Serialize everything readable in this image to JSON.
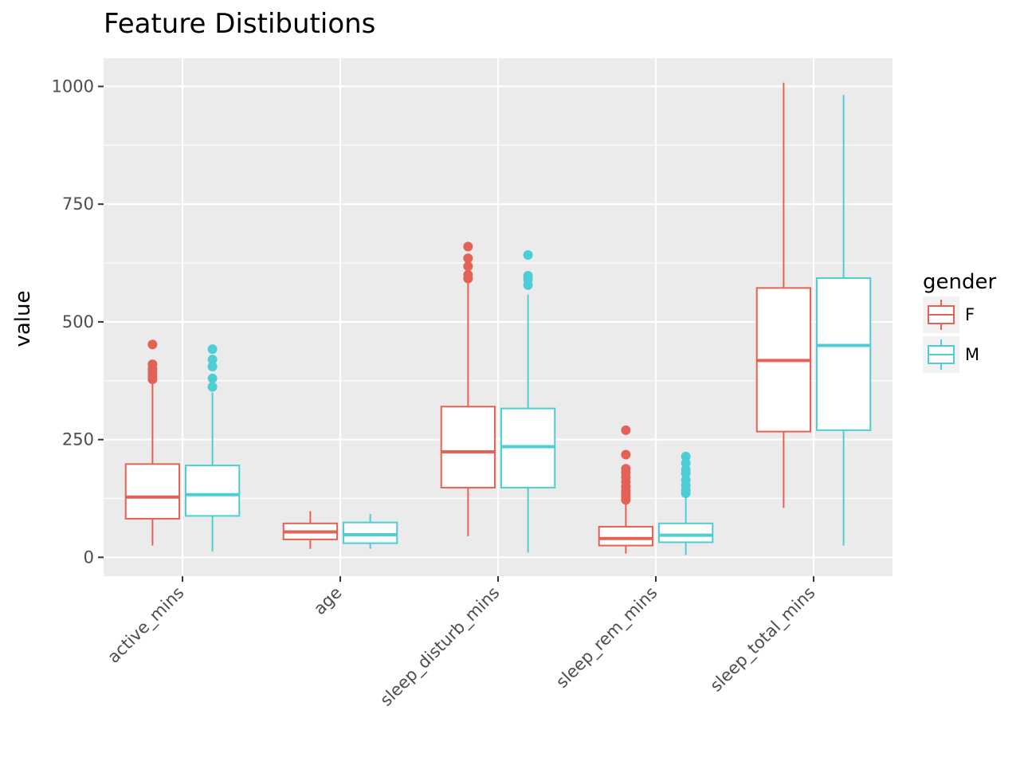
{
  "chart_data": {
    "type": "boxplot",
    "title": "Feature Distibutions",
    "xlabel": "",
    "ylabel": "value",
    "categories": [
      "active_mins",
      "age",
      "sleep_disturb_mins",
      "sleep_rem_mins",
      "sleep_total_mins"
    ],
    "ylim": [
      -40,
      1060
    ],
    "y_ticks": [
      0,
      250,
      500,
      750,
      1000
    ],
    "grid": true,
    "legend": {
      "title": "gender",
      "position": "right"
    },
    "series": [
      {
        "name": "F",
        "color": "#E36256",
        "boxes": [
          {
            "min": 25,
            "q1": 82,
            "median": 128,
            "q3": 198,
            "max": 372,
            "outliers": [
              378,
              385,
              392,
              400,
              410,
              452
            ]
          },
          {
            "min": 18,
            "q1": 38,
            "median": 54,
            "q3": 72,
            "max": 98,
            "outliers": []
          },
          {
            "min": 45,
            "q1": 148,
            "median": 224,
            "q3": 320,
            "max": 585,
            "outliers": [
              592,
              600,
              618,
              635,
              660
            ]
          },
          {
            "min": 8,
            "q1": 25,
            "median": 40,
            "q3": 65,
            "max": 118,
            "outliers": [
              122,
              128,
              135,
              142,
              150,
              160,
              170,
              180,
              188,
              218,
              270
            ]
          },
          {
            "min": 105,
            "q1": 267,
            "median": 418,
            "q3": 572,
            "max": 1008,
            "outliers": []
          }
        ]
      },
      {
        "name": "M",
        "color": "#4DCDD4",
        "boxes": [
          {
            "min": 12,
            "q1": 88,
            "median": 133,
            "q3": 195,
            "max": 350,
            "outliers": [
              362,
              380,
              405,
              420,
              442
            ]
          },
          {
            "min": 18,
            "q1": 30,
            "median": 48,
            "q3": 74,
            "max": 92,
            "outliers": []
          },
          {
            "min": 10,
            "q1": 148,
            "median": 235,
            "q3": 316,
            "max": 558,
            "outliers": [
              578,
              590,
              598,
              642
            ]
          },
          {
            "min": 5,
            "q1": 32,
            "median": 47,
            "q3": 72,
            "max": 130,
            "outliers": [
              136,
              142,
              152,
              164,
              178,
              186,
              200,
              214
            ]
          },
          {
            "min": 25,
            "q1": 270,
            "median": 450,
            "q3": 593,
            "max": 982,
            "outliers": []
          }
        ]
      }
    ]
  }
}
